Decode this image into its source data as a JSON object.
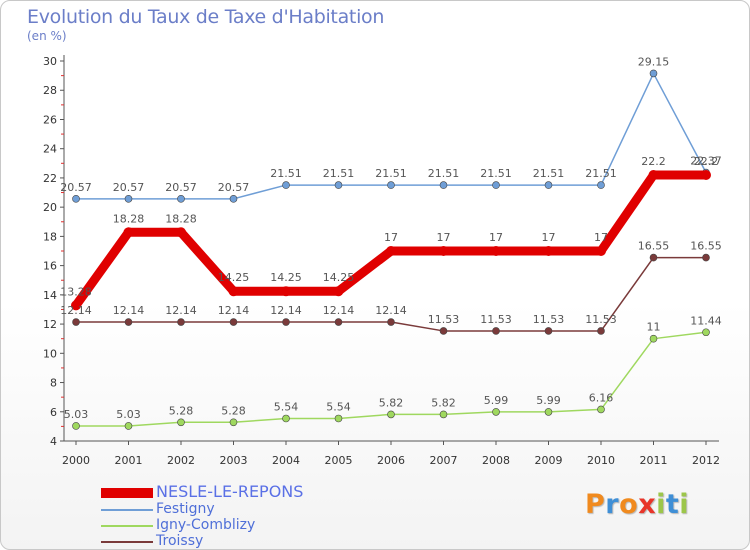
{
  "chart_data": {
    "type": "line",
    "title": "Evolution du Taux de Taxe d'Habitation",
    "unit_label": "(en %)",
    "xlabel": "",
    "ylabel": "",
    "ylim": [
      4,
      30
    ],
    "yticks": [
      4,
      6,
      8,
      10,
      12,
      14,
      16,
      18,
      20,
      22,
      24,
      26,
      28,
      30
    ],
    "categories": [
      "2000",
      "2001",
      "2002",
      "2003",
      "2004",
      "2005",
      "2006",
      "2007",
      "2008",
      "2009",
      "2010",
      "2011",
      "2012"
    ],
    "series": [
      {
        "name": "NESLE-LE-REPONS",
        "color": "#e00000",
        "values": [
          13.28,
          18.28,
          18.28,
          14.25,
          14.25,
          14.25,
          17,
          17,
          17,
          17,
          17,
          22.2,
          22.2
        ],
        "labels": [
          "13.28",
          "18.28",
          "18.28",
          "14.25",
          "14.25",
          "14.25",
          "17",
          "17",
          "17",
          "17",
          "17",
          "22.2",
          "22.2"
        ]
      },
      {
        "name": "Festigny",
        "color": "#6f9ed6",
        "values": [
          20.57,
          20.57,
          20.57,
          20.57,
          21.51,
          21.51,
          21.51,
          21.51,
          21.51,
          21.51,
          21.51,
          29.15,
          22.37
        ],
        "labels": [
          "20.57",
          "20.57",
          "20.57",
          "20.57",
          "21.51",
          "21.51",
          "21.51",
          "21.51",
          "21.51",
          "21.51",
          "21.51",
          "29.15",
          "22.37"
        ]
      },
      {
        "name": "Igny-Comblizy",
        "color": "#9fd85f",
        "values": [
          5.03,
          5.03,
          5.28,
          5.28,
          5.54,
          5.54,
          5.82,
          5.82,
          5.99,
          5.99,
          6.16,
          11,
          11.44
        ],
        "labels": [
          "5.03",
          "5.03",
          "5.28",
          "5.28",
          "5.54",
          "5.54",
          "5.82",
          "5.82",
          "5.99",
          "5.99",
          "6.16",
          "11",
          "11.44"
        ]
      },
      {
        "name": "Troissy",
        "color": "#7a3a3a",
        "values": [
          12.14,
          12.14,
          12.14,
          12.14,
          12.14,
          12.14,
          12.14,
          11.53,
          11.53,
          11.53,
          11.53,
          16.55,
          16.55
        ],
        "labels": [
          "12.14",
          "12.14",
          "12.14",
          "12.14",
          "12.14",
          "12.14",
          "12.14",
          "11.53",
          "11.53",
          "11.53",
          "11.53",
          "16.55",
          "16.55"
        ]
      }
    ],
    "grid": false,
    "legend_position": "bottom-left"
  },
  "logo": {
    "text": "Proxiti",
    "letter_colors": [
      "#f08a1e",
      "#3f8fd6",
      "#f08a1e",
      "#e8352a",
      "#9cc64a",
      "#3f8fd6",
      "#9cc64a"
    ]
  }
}
